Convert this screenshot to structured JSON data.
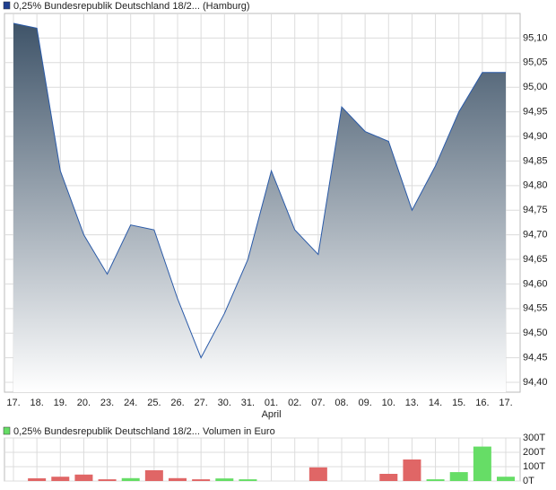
{
  "chart_data": [
    {
      "type": "area",
      "legend": "0,25% Bundesrepublik Deutschland 18/2... (Hamburg)",
      "legend_color": "#1f3f8f",
      "categories": [
        "17.",
        "18.",
        "19.",
        "20.",
        "23.",
        "24.",
        "25.",
        "26.",
        "27.",
        "30.",
        "31.",
        "01.",
        "02.",
        "07.",
        "08.",
        "09.",
        "10.",
        "13.",
        "14.",
        "15.",
        "16.",
        "17."
      ],
      "month_label": "April",
      "values": [
        95.13,
        95.12,
        94.83,
        94.7,
        94.62,
        94.72,
        94.71,
        94.57,
        94.45,
        94.54,
        94.65,
        94.83,
        94.71,
        94.66,
        94.96,
        94.91,
        94.89,
        94.75,
        94.84,
        94.95,
        95.03,
        95.03
      ],
      "color": "#2a5aa8",
      "fill_top": "#3f5469",
      "fill_bottom": "#ffffff",
      "ylim": [
        94.38,
        95.15
      ],
      "yticks": [
        {
          "value": 94.4,
          "label": "94,40"
        },
        {
          "value": 94.45,
          "label": "94,45"
        },
        {
          "value": 94.5,
          "label": "94,50"
        },
        {
          "value": 94.55,
          "label": "94,55"
        },
        {
          "value": 94.6,
          "label": "94,60"
        },
        {
          "value": 94.65,
          "label": "94,65"
        },
        {
          "value": 94.7,
          "label": "94,70"
        },
        {
          "value": 94.75,
          "label": "94,75"
        },
        {
          "value": 94.8,
          "label": "94,80"
        },
        {
          "value": 94.85,
          "label": "94,85"
        },
        {
          "value": 94.9,
          "label": "94,90"
        },
        {
          "value": 94.95,
          "label": "94,95"
        },
        {
          "value": 95.0,
          "label": "95,00"
        },
        {
          "value": 95.05,
          "label": "95,05"
        },
        {
          "value": 95.1,
          "label": "95,10"
        }
      ],
      "grid": true
    },
    {
      "type": "bar",
      "legend": "0,25% Bundesrepublik Deutschland 18/2... Volumen in Euro",
      "legend_color": "#66dd66",
      "values": [
        0,
        19,
        30,
        45,
        12,
        20,
        75,
        20,
        12,
        18,
        12,
        0,
        0,
        95,
        0,
        0,
        50,
        150,
        12,
        62,
        240,
        30
      ],
      "colors": [
        "#e06666",
        "#e06666",
        "#e06666",
        "#e06666",
        "#e06666",
        "#66dd66",
        "#e06666",
        "#e06666",
        "#e06666",
        "#66dd66",
        "#66dd66",
        "#66dd66",
        "#66dd66",
        "#e06666",
        "#e06666",
        "#e06666",
        "#e06666",
        "#e06666",
        "#66dd66",
        "#66dd66",
        "#66dd66",
        "#66dd66"
      ],
      "ylim": [
        0,
        300
      ],
      "yticks": [
        {
          "value": 0,
          "label": "0T"
        },
        {
          "value": 100,
          "label": "100T"
        },
        {
          "value": 200,
          "label": "200T"
        },
        {
          "value": 300,
          "label": "300T"
        }
      ],
      "grid": true
    }
  ]
}
